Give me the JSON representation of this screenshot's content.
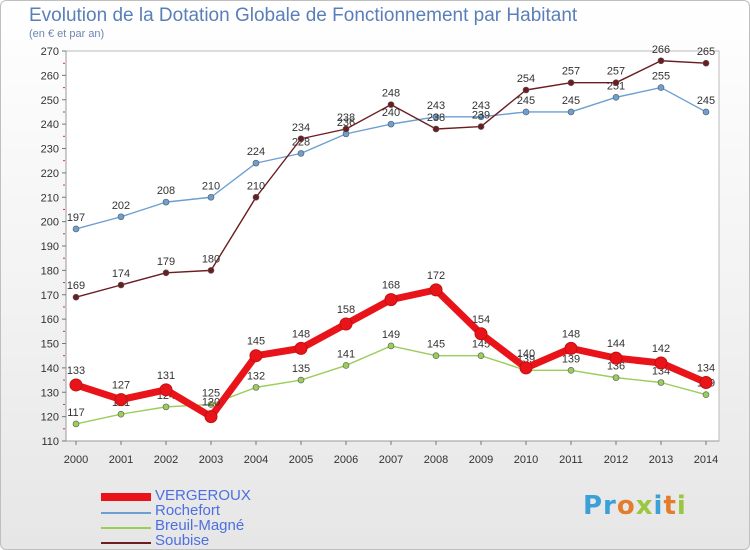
{
  "header": {
    "title": "Evolution de la Dotation Globale de Fonctionnement par Habitant",
    "subtitle": "(en € et par an)"
  },
  "logo": {
    "text": "Proxiti"
  },
  "chart_data": {
    "type": "line",
    "title": "Evolution de la Dotation Globale de Fonctionnement par Habitant",
    "subtitle": "(en € et par an)",
    "x": [
      "2000",
      "2001",
      "2002",
      "2003",
      "2004",
      "2005",
      "2006",
      "2007",
      "2008",
      "2009",
      "2010",
      "2011",
      "2012",
      "2013",
      "2014"
    ],
    "ylim": [
      110,
      270
    ],
    "yticks": [
      110,
      120,
      130,
      140,
      150,
      160,
      170,
      180,
      190,
      200,
      210,
      220,
      230,
      240,
      250,
      260,
      270
    ],
    "grid": false,
    "legend_position": "bottom-left",
    "series": [
      {
        "name": "VERGEROUX",
        "color": "#e8141a",
        "values": [
          133,
          127,
          131,
          120,
          145,
          148,
          158,
          168,
          172,
          154,
          140,
          148,
          144,
          142,
          134
        ]
      },
      {
        "name": "Rochefort",
        "color": "#6c9fd2",
        "values": [
          197,
          202,
          208,
          210,
          224,
          228,
          236,
          240,
          243,
          243,
          245,
          245,
          251,
          255,
          245
        ]
      },
      {
        "name": "Breuil-Magné",
        "color": "#9acd5a",
        "values": [
          117,
          121,
          124,
          125,
          132,
          135,
          141,
          149,
          145,
          145,
          139,
          139,
          136,
          134,
          129
        ]
      },
      {
        "name": "Soubise",
        "color": "#6b1d21",
        "values": [
          169,
          174,
          179,
          180,
          210,
          234,
          238,
          248,
          238,
          239,
          254,
          257,
          257,
          266,
          265
        ]
      }
    ]
  }
}
